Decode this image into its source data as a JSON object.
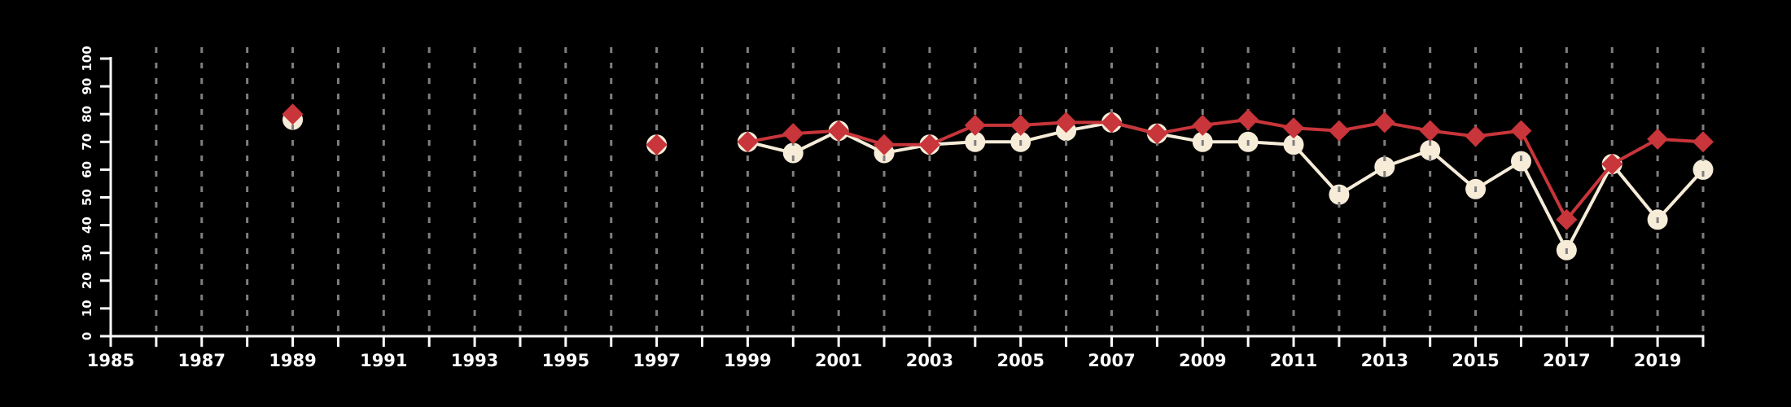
{
  "chart_data": {
    "type": "line",
    "title": "",
    "xlabel": "",
    "ylabel": "",
    "xlim": [
      1985,
      2020
    ],
    "ylim": [
      0,
      100
    ],
    "grid": {
      "vertical": true,
      "style": "dashed",
      "color": "#7f7f7f",
      "from_year": 1986,
      "to_year": 2020,
      "every": 1
    },
    "legend": "none",
    "x_tick_every": 1,
    "x_tick_labels": [
      "1985",
      "1987",
      "1989",
      "1991",
      "1993",
      "1995",
      "1997",
      "1999",
      "2001",
      "2003",
      "2005",
      "2007",
      "2009",
      "2011",
      "2013",
      "2015",
      "2017",
      "2019"
    ],
    "y_tick_labels": [
      "0",
      "10",
      "20",
      "30",
      "40",
      "50",
      "60",
      "70",
      "80",
      "90",
      "100"
    ],
    "years": [
      1989,
      1997,
      1999,
      2000,
      2001,
      2002,
      2003,
      2004,
      2005,
      2006,
      2007,
      2008,
      2009,
      2010,
      2011,
      2012,
      2013,
      2014,
      2015,
      2016,
      2017,
      2018,
      2019,
      2020
    ],
    "line_connect_from_year": 1999,
    "series": [
      {
        "name": "red-diamond-series",
        "marker": "diamond",
        "color": "#c8353a",
        "values": [
          80,
          69,
          70,
          73,
          74,
          69,
          69,
          76,
          76,
          77,
          77,
          73,
          76,
          78,
          75,
          74,
          77,
          74,
          72,
          74,
          42,
          62,
          71,
          70
        ]
      },
      {
        "name": "cream-circle-series",
        "marker": "circle",
        "color": "#f6ecd8",
        "values": [
          78,
          69,
          70,
          66,
          74,
          66,
          69,
          70,
          70,
          74,
          77,
          73,
          70,
          70,
          69,
          51,
          61,
          67,
          53,
          63,
          31,
          62,
          42,
          60
        ]
      }
    ],
    "colors": {
      "background": "#000000",
      "axis": "#ffffff",
      "tick_label": "#ffffff",
      "gridline": "#7f7f7f",
      "red_series": "#c8353a",
      "cream_series": "#f6ecd8"
    }
  }
}
